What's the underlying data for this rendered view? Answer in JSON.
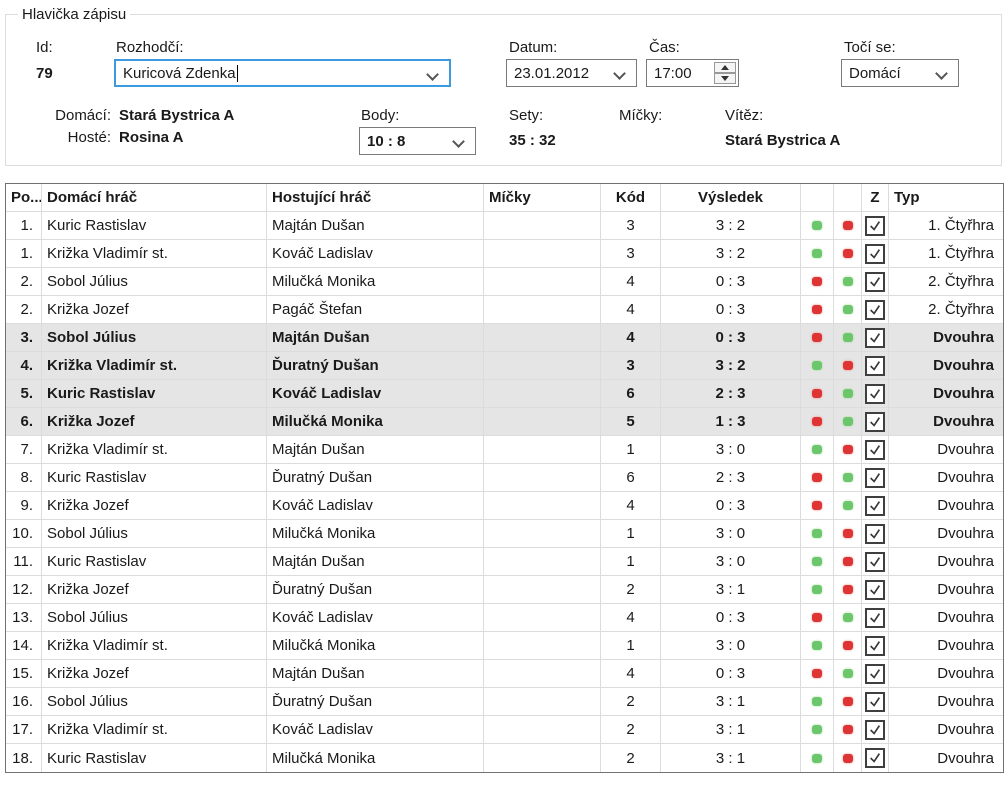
{
  "header": {
    "group_title": "Hlavička zápisu",
    "id_label": "Id:",
    "id_value": "79",
    "referee_label": "Rozhodčí:",
    "referee_value": "Kuricová Zdenka",
    "date_label": "Datum:",
    "date_value": "23.01.2012",
    "time_label": "Čas:",
    "time_value": "17:00",
    "spins_label": "Točí se:",
    "spins_value": "Domácí",
    "home_label": "Domácí:",
    "home_value": "Stará Bystrica A",
    "guest_label": "Hosté:",
    "guest_value": "Rosina A",
    "points_label": "Body:",
    "points_value": "10 : 8",
    "sets_label": "Sety:",
    "sets_value": "35 : 32",
    "balls_label": "Míčky:",
    "balls_value": "",
    "winner_label": "Vítěz:",
    "winner_value": "Stará Bystrica A"
  },
  "table": {
    "columns": [
      "Po...",
      "Domácí hráč",
      "Hostující hráč",
      "Míčky",
      "Kód",
      "Výsledek",
      "",
      "",
      "Z",
      "Typ"
    ],
    "rows": [
      {
        "po": "1.",
        "home": "Kuric Rastislav",
        "guest": "Majtán Dušan",
        "micky": "",
        "kod": "3",
        "vysledek": "3 : 2",
        "ind": [
          "green",
          "red"
        ],
        "z": true,
        "typ": "1. Čtyřhra",
        "highlight": false
      },
      {
        "po": "1.",
        "home": "Križka Vladimír st.",
        "guest": "Kováč Ladislav",
        "micky": "",
        "kod": "3",
        "vysledek": "3 : 2",
        "ind": [
          "green",
          "red"
        ],
        "z": true,
        "typ": "1. Čtyřhra",
        "highlight": false
      },
      {
        "po": "2.",
        "home": "Sobol Július",
        "guest": "Milučká Monika",
        "micky": "",
        "kod": "4",
        "vysledek": "0 : 3",
        "ind": [
          "red",
          "green"
        ],
        "z": true,
        "typ": "2. Čtyřhra",
        "highlight": false
      },
      {
        "po": "2.",
        "home": "Križka Jozef",
        "guest": "Pagáč Štefan",
        "micky": "",
        "kod": "4",
        "vysledek": "0 : 3",
        "ind": [
          "red",
          "green"
        ],
        "z": true,
        "typ": "2. Čtyřhra",
        "highlight": false
      },
      {
        "po": "3.",
        "home": "Sobol Július",
        "guest": "Majtán Dušan",
        "micky": "",
        "kod": "4",
        "vysledek": "0 : 3",
        "ind": [
          "red",
          "green"
        ],
        "z": true,
        "typ": "Dvouhra",
        "highlight": true
      },
      {
        "po": "4.",
        "home": "Križka Vladimír st.",
        "guest": "Ďuratný Dušan",
        "micky": "",
        "kod": "3",
        "vysledek": "3 : 2",
        "ind": [
          "green",
          "red"
        ],
        "z": true,
        "typ": "Dvouhra",
        "highlight": true
      },
      {
        "po": "5.",
        "home": "Kuric Rastislav",
        "guest": "Kováč Ladislav",
        "micky": "",
        "kod": "6",
        "vysledek": "2 : 3",
        "ind": [
          "red",
          "green"
        ],
        "z": true,
        "typ": "Dvouhra",
        "highlight": true
      },
      {
        "po": "6.",
        "home": "Križka Jozef",
        "guest": "Milučká Monika",
        "micky": "",
        "kod": "5",
        "vysledek": "1 : 3",
        "ind": [
          "red",
          "green"
        ],
        "z": true,
        "typ": "Dvouhra",
        "highlight": true
      },
      {
        "po": "7.",
        "home": "Križka Vladimír st.",
        "guest": "Majtán Dušan",
        "micky": "",
        "kod": "1",
        "vysledek": "3 : 0",
        "ind": [
          "green",
          "red"
        ],
        "z": true,
        "typ": "Dvouhra",
        "highlight": false
      },
      {
        "po": "8.",
        "home": "Kuric Rastislav",
        "guest": "Ďuratný Dušan",
        "micky": "",
        "kod": "6",
        "vysledek": "2 : 3",
        "ind": [
          "red",
          "green"
        ],
        "z": true,
        "typ": "Dvouhra",
        "highlight": false
      },
      {
        "po": "9.",
        "home": "Križka Jozef",
        "guest": "Kováč Ladislav",
        "micky": "",
        "kod": "4",
        "vysledek": "0 : 3",
        "ind": [
          "red",
          "green"
        ],
        "z": true,
        "typ": "Dvouhra",
        "highlight": false
      },
      {
        "po": "10.",
        "home": "Sobol Július",
        "guest": "Milučká Monika",
        "micky": "",
        "kod": "1",
        "vysledek": "3 : 0",
        "ind": [
          "green",
          "red"
        ],
        "z": true,
        "typ": "Dvouhra",
        "highlight": false
      },
      {
        "po": "11.",
        "home": "Kuric Rastislav",
        "guest": "Majtán Dušan",
        "micky": "",
        "kod": "1",
        "vysledek": "3 : 0",
        "ind": [
          "green",
          "red"
        ],
        "z": true,
        "typ": "Dvouhra",
        "highlight": false
      },
      {
        "po": "12.",
        "home": "Križka Jozef",
        "guest": "Ďuratný Dušan",
        "micky": "",
        "kod": "2",
        "vysledek": "3 : 1",
        "ind": [
          "green",
          "red"
        ],
        "z": true,
        "typ": "Dvouhra",
        "highlight": false
      },
      {
        "po": "13.",
        "home": "Sobol Július",
        "guest": "Kováč Ladislav",
        "micky": "",
        "kod": "4",
        "vysledek": "0 : 3",
        "ind": [
          "red",
          "green"
        ],
        "z": true,
        "typ": "Dvouhra",
        "highlight": false
      },
      {
        "po": "14.",
        "home": "Križka Vladimír st.",
        "guest": "Milučká Monika",
        "micky": "",
        "kod": "1",
        "vysledek": "3 : 0",
        "ind": [
          "green",
          "red"
        ],
        "z": true,
        "typ": "Dvouhra",
        "highlight": false
      },
      {
        "po": "15.",
        "home": "Križka Jozef",
        "guest": "Majtán Dušan",
        "micky": "",
        "kod": "4",
        "vysledek": "0 : 3",
        "ind": [
          "red",
          "green"
        ],
        "z": true,
        "typ": "Dvouhra",
        "highlight": false
      },
      {
        "po": "16.",
        "home": "Sobol Július",
        "guest": "Ďuratný Dušan",
        "micky": "",
        "kod": "2",
        "vysledek": "3 : 1",
        "ind": [
          "green",
          "red"
        ],
        "z": true,
        "typ": "Dvouhra",
        "highlight": false
      },
      {
        "po": "17.",
        "home": "Križka Vladimír st.",
        "guest": "Kováč Ladislav",
        "micky": "",
        "kod": "2",
        "vysledek": "3 : 1",
        "ind": [
          "green",
          "red"
        ],
        "z": true,
        "typ": "Dvouhra",
        "highlight": false
      },
      {
        "po": "18.",
        "home": "Kuric Rastislav",
        "guest": "Milučká Monika",
        "micky": "",
        "kod": "2",
        "vysledek": "3 : 1",
        "ind": [
          "green",
          "red"
        ],
        "z": true,
        "typ": "Dvouhra",
        "highlight": false
      }
    ]
  },
  "colors": {
    "indicator_green": "#6cc76c",
    "indicator_red": "#de3434",
    "focus_border": "#3d9ae0",
    "row_highlight": "#e5e5e5"
  }
}
